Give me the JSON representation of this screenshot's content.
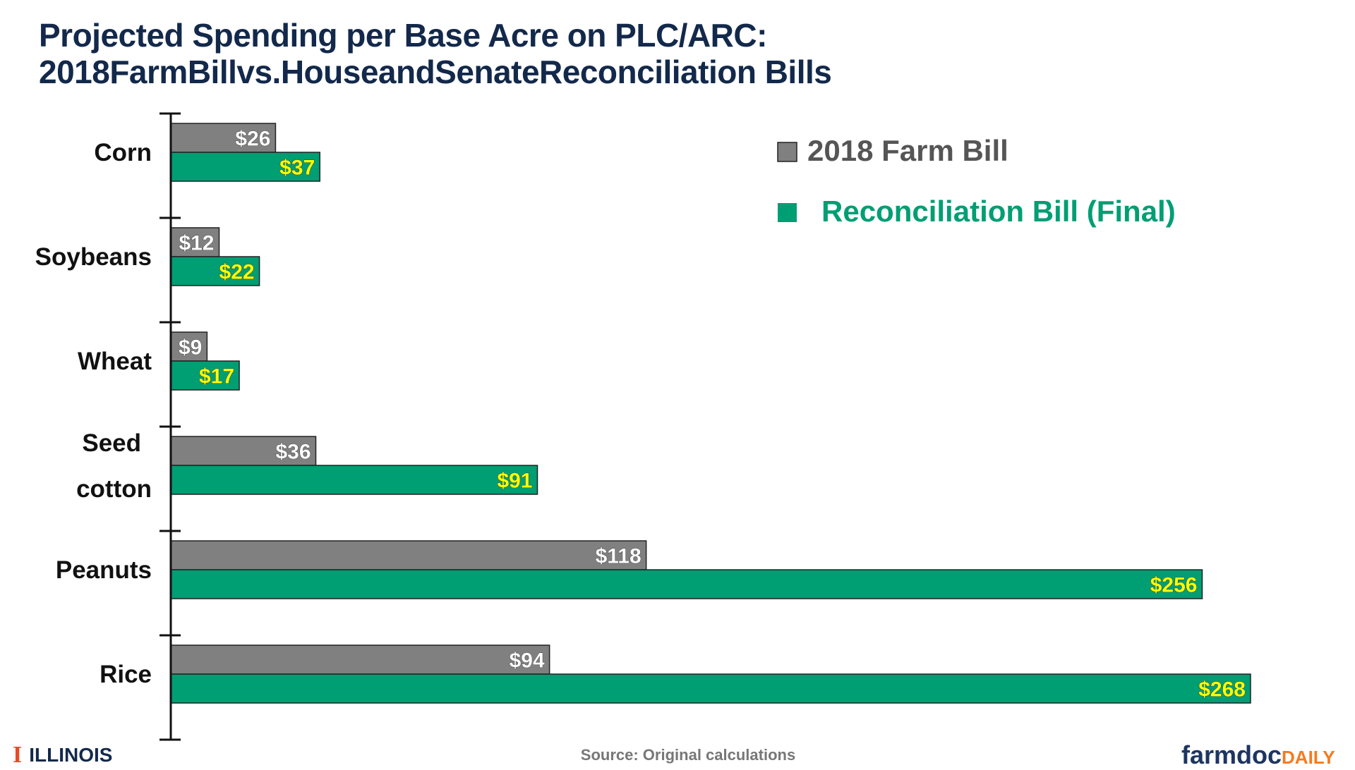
{
  "title_line1": "Projected Spending per Base Acre on PLC/ARC:",
  "title_line2": "2018FarmBillvs.HouseandSenateReconciliation Bills",
  "chart_data": {
    "type": "bar",
    "orientation": "horizontal",
    "categories": [
      "Corn",
      "Soybeans",
      "Wheat",
      "Seed cotton",
      "Peanuts",
      "Rice"
    ],
    "series": [
      {
        "name": "2018 Farm Bill",
        "color": "#808080",
        "label_color": "#ffffff",
        "values": [
          26,
          12,
          9,
          36,
          118,
          94
        ],
        "labels": [
          "$26",
          "$12",
          "$9",
          "$36",
          "$118",
          "$94"
        ]
      },
      {
        "name": "Reconciliation Bill (Final)",
        "color": "#009e73",
        "label_color": "#ffff00",
        "values": [
          37,
          22,
          17,
          91,
          256,
          268
        ],
        "labels": [
          "$37",
          "$22",
          "$17",
          "$91",
          "$256",
          "$268"
        ]
      }
    ],
    "xlim": [
      0,
      268
    ],
    "grid": false,
    "legend": "top-right"
  },
  "footer": {
    "logo_left": "ILLINOIS",
    "source": "Source: Original calculations",
    "logo_right_a": "farmdoc",
    "logo_right_b": "DAILY"
  }
}
